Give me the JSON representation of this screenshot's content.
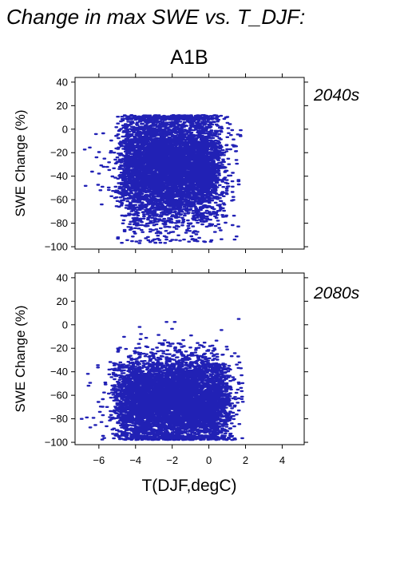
{
  "figure": {
    "title": "Change in max SWE vs. T_DJF:",
    "scenario": "A1B",
    "xlabel": "T(DJF,degC)",
    "point_color": "#2121b5"
  },
  "chart_data": [
    {
      "type": "scatter",
      "panel_label": "2040s",
      "ylabel": "SWE Change (%)",
      "xlim": [
        -7.3,
        5.2
      ],
      "ylim": [
        -102,
        44
      ],
      "xticks": [
        -6,
        -4,
        -2,
        0,
        2,
        4
      ],
      "yticks": [
        40,
        20,
        0,
        -20,
        -40,
        -60,
        -80,
        -100
      ],
      "point_count_approx": 6000,
      "cloud": {
        "x_range": [
          -7.2,
          1.8
        ],
        "dense_x_range": [
          -4.5,
          0.3
        ],
        "y_range": [
          -97,
          12
        ],
        "dense_y_range": [
          -85,
          8
        ],
        "centroid": [
          -2.0,
          -32
        ]
      }
    },
    {
      "type": "scatter",
      "panel_label": "2080s",
      "ylabel": "SWE Change (%)",
      "xlim": [
        -7.3,
        5.2
      ],
      "ylim": [
        -102,
        44
      ],
      "xticks": [
        -6,
        -4,
        -2,
        0,
        2,
        4
      ],
      "yticks": [
        40,
        20,
        0,
        -20,
        -40,
        -60,
        -80,
        -100
      ],
      "point_count_approx": 6000,
      "cloud": {
        "x_range": [
          -7.2,
          1.9
        ],
        "dense_x_range": [
          -4.8,
          0.8
        ],
        "y_range": [
          -98,
          5
        ],
        "dense_y_range": [
          -97,
          0
        ],
        "centroid": [
          -1.8,
          -65
        ]
      }
    }
  ]
}
